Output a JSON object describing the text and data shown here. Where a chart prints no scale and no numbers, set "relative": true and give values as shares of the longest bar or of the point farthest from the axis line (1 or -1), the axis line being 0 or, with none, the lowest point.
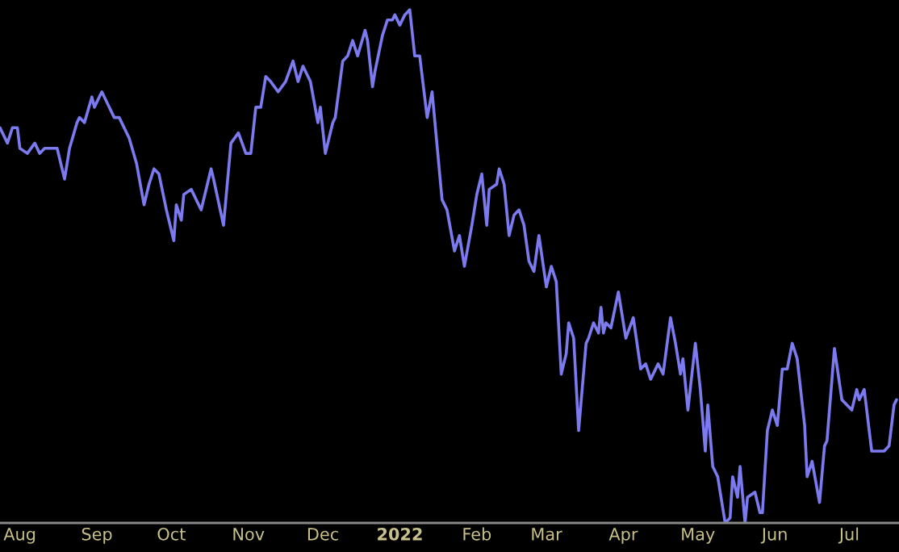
{
  "chart_data": {
    "type": "line",
    "relative": true,
    "x": [
      "2021-07-24",
      "2021-07-27",
      "2021-07-29",
      "2021-07-31",
      "2021-08-01",
      "2021-08-04",
      "2021-08-07",
      "2021-08-09",
      "2021-08-11",
      "2021-08-16",
      "2021-08-19",
      "2021-08-21",
      "2021-08-24",
      "2021-08-25",
      "2021-08-27",
      "2021-08-30",
      "2021-08-31",
      "2021-09-03",
      "2021-09-05",
      "2021-09-08",
      "2021-09-10",
      "2021-09-14",
      "2021-09-17",
      "2021-09-20",
      "2021-09-22",
      "2021-09-24",
      "2021-09-26",
      "2021-09-29",
      "2021-10-02",
      "2021-10-03",
      "2021-10-05",
      "2021-10-06",
      "2021-10-09",
      "2021-10-13",
      "2021-10-17",
      "2021-10-18",
      "2021-10-22",
      "2021-10-25",
      "2021-10-28",
      "2021-10-31",
      "2021-11-02",
      "2021-11-04",
      "2021-11-06",
      "2021-11-08",
      "2021-11-10",
      "2021-11-13",
      "2021-11-16",
      "2021-11-19",
      "2021-11-21",
      "2021-11-23",
      "2021-11-26",
      "2021-11-29",
      "2021-11-30",
      "2021-12-02",
      "2021-12-05",
      "2021-12-06",
      "2021-12-09",
      "2021-12-11",
      "2021-12-13",
      "2021-12-15",
      "2021-12-18",
      "2021-12-19",
      "2021-12-21",
      "2021-12-22",
      "2021-12-25",
      "2021-12-27",
      "2021-12-29",
      "2021-12-30",
      "2022-01-01",
      "2022-01-03",
      "2022-01-05",
      "2022-01-07",
      "2022-01-09",
      "2022-01-12",
      "2022-01-14",
      "2022-01-18",
      "2022-01-20",
      "2022-01-23",
      "2022-01-25",
      "2022-01-27",
      "2022-01-30",
      "2022-02-01",
      "2022-02-03",
      "2022-02-05",
      "2022-02-06",
      "2022-02-09",
      "2022-02-10",
      "2022-02-12",
      "2022-02-14",
      "2022-02-16",
      "2022-02-18",
      "2022-02-20",
      "2022-02-22",
      "2022-02-24",
      "2022-02-26",
      "2022-03-01",
      "2022-03-03",
      "2022-03-05",
      "2022-03-07",
      "2022-03-09",
      "2022-03-10",
      "2022-03-12",
      "2022-03-14",
      "2022-03-17",
      "2022-03-18",
      "2022-03-20",
      "2022-03-22",
      "2022-03-23",
      "2022-03-24",
      "2022-03-25",
      "2022-03-27",
      "2022-03-30",
      "2022-04-02",
      "2022-04-05",
      "2022-04-08",
      "2022-04-10",
      "2022-04-12",
      "2022-04-15",
      "2022-04-17",
      "2022-04-20",
      "2022-04-22",
      "2022-04-24",
      "2022-04-25",
      "2022-04-27",
      "2022-04-30",
      "2022-05-02",
      "2022-05-04",
      "2022-05-05",
      "2022-05-07",
      "2022-05-09",
      "2022-05-11",
      "2022-05-12",
      "2022-05-14",
      "2022-05-15",
      "2022-05-17",
      "2022-05-18",
      "2022-05-20",
      "2022-05-21",
      "2022-05-24",
      "2022-05-26",
      "2022-05-27",
      "2022-05-29",
      "2022-05-31",
      "2022-06-02",
      "2022-06-04",
      "2022-06-06",
      "2022-06-08",
      "2022-06-10",
      "2022-06-13",
      "2022-06-14",
      "2022-06-16",
      "2022-06-19",
      "2022-06-21",
      "2022-06-22",
      "2022-06-25",
      "2022-06-28",
      "2022-07-02",
      "2022-07-04",
      "2022-07-05",
      "2022-07-07",
      "2022-07-10",
      "2022-07-12",
      "2022-07-15",
      "2022-07-17",
      "2022-07-19",
      "2022-07-20"
    ],
    "series": [
      {
        "color": "#7b7bef",
        "values": [
          0.77,
          0.74,
          0.77,
          0.77,
          0.73,
          0.72,
          0.74,
          0.72,
          0.73,
          0.73,
          0.67,
          0.73,
          0.78,
          0.79,
          0.78,
          0.83,
          0.81,
          0.84,
          0.82,
          0.79,
          0.79,
          0.75,
          0.7,
          0.62,
          0.66,
          0.69,
          0.68,
          0.61,
          0.55,
          0.62,
          0.59,
          0.64,
          0.65,
          0.61,
          0.69,
          0.67,
          0.58,
          0.74,
          0.76,
          0.72,
          0.72,
          0.81,
          0.81,
          0.87,
          0.86,
          0.84,
          0.86,
          0.9,
          0.86,
          0.89,
          0.86,
          0.78,
          0.81,
          0.72,
          0.78,
          0.79,
          0.9,
          0.91,
          0.94,
          0.91,
          0.96,
          0.94,
          0.85,
          0.88,
          0.95,
          0.98,
          0.98,
          0.99,
          0.97,
          0.99,
          1,
          0.91,
          0.91,
          0.79,
          0.84,
          0.63,
          0.61,
          0.53,
          0.56,
          0.5,
          0.58,
          0.64,
          0.68,
          0.58,
          0.65,
          0.66,
          0.69,
          0.66,
          0.56,
          0.6,
          0.61,
          0.58,
          0.51,
          0.49,
          0.56,
          0.46,
          0.5,
          0.47,
          0.29,
          0.33,
          0.39,
          0.36,
          0.18,
          0.35,
          0.36,
          0.39,
          0.37,
          0.42,
          0.37,
          0.39,
          0.38,
          0.45,
          0.36,
          0.4,
          0.3,
          0.31,
          0.28,
          0.31,
          0.29,
          0.4,
          0.35,
          0.29,
          0.32,
          0.22,
          0.35,
          0.26,
          0.14,
          0.23,
          0.11,
          0.09,
          0.03,
          0,
          0.01,
          0.09,
          0.05,
          0.11,
          0,
          0.05,
          0.06,
          0.02,
          0.02,
          0.18,
          0.22,
          0.19,
          0.3,
          0.3,
          0.35,
          0.32,
          0.19,
          0.09,
          0.12,
          0.04,
          0.15,
          0.16,
          0.34,
          0.24,
          0.22,
          0.26,
          0.24,
          0.26,
          0.14,
          0.14,
          0.14,
          0.15,
          0.23,
          0.24
        ]
      }
    ],
    "xlim": [
      "2021-07-24",
      "2022-07-21"
    ],
    "xticks": [
      {
        "value": "2021-08-01",
        "label": "Aug"
      },
      {
        "value": "2021-09-01",
        "label": "Sep"
      },
      {
        "value": "2021-10-01",
        "label": "Oct"
      },
      {
        "value": "2021-11-01",
        "label": "Nov"
      },
      {
        "value": "2021-12-01",
        "label": "Dec"
      },
      {
        "value": "2022-01-01",
        "label": "2022"
      },
      {
        "value": "2022-02-01",
        "label": "Feb"
      },
      {
        "value": "2022-03-01",
        "label": "Mar"
      },
      {
        "value": "2022-04-01",
        "label": "Apr"
      },
      {
        "value": "2022-05-01",
        "label": "May"
      },
      {
        "value": "2022-06-01",
        "label": "Jun"
      },
      {
        "value": "2022-07-01",
        "label": "Jul"
      }
    ],
    "marker": "none",
    "line_style": "solid"
  }
}
